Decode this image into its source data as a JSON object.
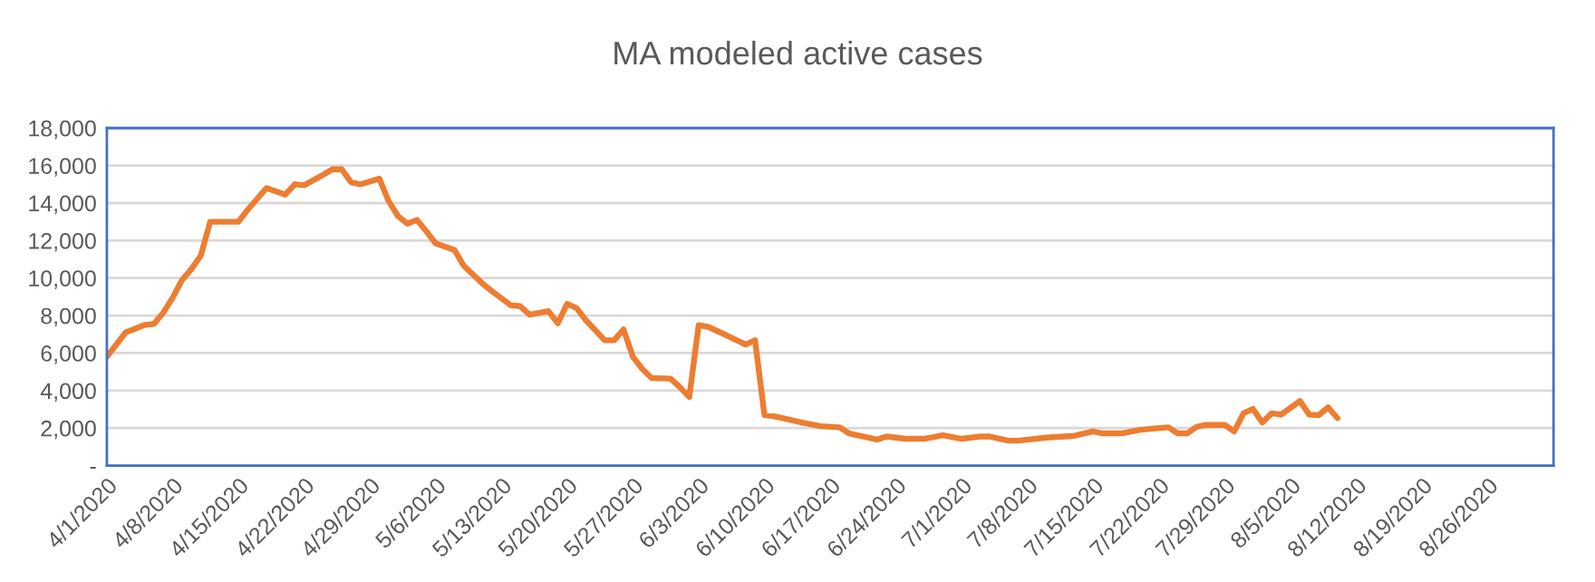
{
  "chart_data": {
    "type": "line",
    "title": "MA modeled active cases",
    "x": [
      "2020-04-01",
      "2020-04-03",
      "2020-04-05",
      "2020-04-06",
      "2020-04-07",
      "2020-04-08",
      "2020-04-09",
      "2020-04-10",
      "2020-04-11",
      "2020-04-12",
      "2020-04-15",
      "2020-04-16",
      "2020-04-18",
      "2020-04-20",
      "2020-04-21",
      "2020-04-22",
      "2020-04-24",
      "2020-04-25",
      "2020-04-26",
      "2020-04-27",
      "2020-04-28",
      "2020-04-30",
      "2020-05-01",
      "2020-05-02",
      "2020-05-03",
      "2020-05-04",
      "2020-05-05",
      "2020-05-06",
      "2020-05-08",
      "2020-05-09",
      "2020-05-11",
      "2020-05-12",
      "2020-05-14",
      "2020-05-15",
      "2020-05-16",
      "2020-05-18",
      "2020-05-19",
      "2020-05-20",
      "2020-05-21",
      "2020-05-22",
      "2020-05-24",
      "2020-05-25",
      "2020-05-26",
      "2020-05-27",
      "2020-05-28",
      "2020-05-29",
      "2020-05-31",
      "2020-06-01",
      "2020-06-02",
      "2020-06-03",
      "2020-06-04",
      "2020-06-05",
      "2020-06-06",
      "2020-06-08",
      "2020-06-09",
      "2020-06-10",
      "2020-06-11",
      "2020-06-12",
      "2020-06-14",
      "2020-06-16",
      "2020-06-18",
      "2020-06-19",
      "2020-06-22",
      "2020-06-23",
      "2020-06-25",
      "2020-06-27",
      "2020-06-29",
      "2020-07-01",
      "2020-07-03",
      "2020-07-04",
      "2020-07-06",
      "2020-07-07",
      "2020-07-10",
      "2020-07-13",
      "2020-07-15",
      "2020-07-16",
      "2020-07-18",
      "2020-07-20",
      "2020-07-23",
      "2020-07-24",
      "2020-07-25",
      "2020-07-26",
      "2020-07-27",
      "2020-07-29",
      "2020-07-30",
      "2020-07-31",
      "2020-08-01",
      "2020-08-02",
      "2020-08-03",
      "2020-08-04",
      "2020-08-06",
      "2020-08-07",
      "2020-08-08",
      "2020-08-09",
      "2020-08-10"
    ],
    "series": [
      {
        "color": "#ed7d31",
        "values": [
          5800,
          7100,
          7500,
          7550,
          8150,
          8950,
          9900,
          10480,
          11200,
          13000,
          13000,
          13650,
          14800,
          14450,
          15000,
          14950,
          15500,
          15800,
          15800,
          15100,
          15000,
          15300,
          14100,
          13300,
          12900,
          13100,
          12500,
          11850,
          11500,
          10650,
          9700,
          9300,
          8550,
          8500,
          8050,
          8240,
          7590,
          8630,
          8400,
          7750,
          6680,
          6680,
          7260,
          5800,
          5150,
          4670,
          4640,
          4180,
          3660,
          7490,
          7400,
          7170,
          6940,
          6450,
          6680,
          2690,
          2630,
          2530,
          2300,
          2100,
          2040,
          1720,
          1390,
          1550,
          1430,
          1430,
          1620,
          1430,
          1550,
          1550,
          1330,
          1330,
          1490,
          1590,
          1820,
          1720,
          1720,
          1910,
          2040,
          1720,
          1720,
          2070,
          2170,
          2170,
          1820,
          2790,
          3020,
          2300,
          2790,
          2720,
          3440,
          2720,
          2690,
          3110,
          2530
        ]
      }
    ],
    "xlim": [
      "2020-04-01",
      "2020-09-02"
    ],
    "xticks": [
      {
        "value": "2020-04-01",
        "label": "4/1/2020"
      },
      {
        "value": "2020-04-08",
        "label": "4/8/2020"
      },
      {
        "value": "2020-04-15",
        "label": "4/15/2020"
      },
      {
        "value": "2020-04-22",
        "label": "4/22/2020"
      },
      {
        "value": "2020-04-29",
        "label": "4/29/2020"
      },
      {
        "value": "2020-05-06",
        "label": "5/6/2020"
      },
      {
        "value": "2020-05-13",
        "label": "5/13/2020"
      },
      {
        "value": "2020-05-20",
        "label": "5/20/2020"
      },
      {
        "value": "2020-05-27",
        "label": "5/27/2020"
      },
      {
        "value": "2020-06-03",
        "label": "6/3/2020"
      },
      {
        "value": "2020-06-10",
        "label": "6/10/2020"
      },
      {
        "value": "2020-06-17",
        "label": "6/17/2020"
      },
      {
        "value": "2020-06-24",
        "label": "6/24/2020"
      },
      {
        "value": "2020-07-01",
        "label": "7/1/2020"
      },
      {
        "value": "2020-07-08",
        "label": "7/8/2020"
      },
      {
        "value": "2020-07-15",
        "label": "7/15/2020"
      },
      {
        "value": "2020-07-22",
        "label": "7/22/2020"
      },
      {
        "value": "2020-07-29",
        "label": "7/29/2020"
      },
      {
        "value": "2020-08-05",
        "label": "8/5/2020"
      },
      {
        "value": "2020-08-12",
        "label": "8/12/2020"
      },
      {
        "value": "2020-08-19",
        "label": "8/19/2020"
      },
      {
        "value": "2020-08-26",
        "label": "8/26/2020"
      }
    ],
    "ylim": [
      0,
      18000
    ],
    "yticks": [
      {
        "value": 0,
        "label": "-"
      },
      {
        "value": 2000,
        "label": "2,000"
      },
      {
        "value": 4000,
        "label": "4,000"
      },
      {
        "value": 6000,
        "label": "6,000"
      },
      {
        "value": 8000,
        "label": "8,000"
      },
      {
        "value": 10000,
        "label": "10,000"
      },
      {
        "value": 12000,
        "label": "12,000"
      },
      {
        "value": 14000,
        "label": "14,000"
      },
      {
        "value": 16000,
        "label": "16,000"
      },
      {
        "value": 18000,
        "label": "18,000"
      }
    ],
    "grid": "y",
    "marker": "none",
    "line_style": "solid"
  }
}
